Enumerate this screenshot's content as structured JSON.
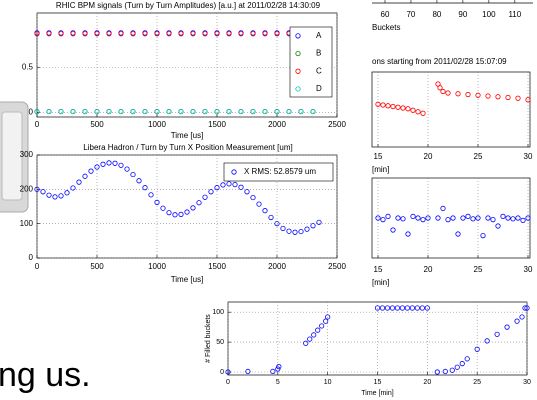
{
  "slide_text": "ng us.",
  "chart_data": [
    {
      "type": "scatter",
      "title": "RHIC BPM signals (Turn by Turn Amplitudes) [a.u.] at 2011/02/28 14:30:09",
      "xlabel": "Time [us]",
      "xlim": [
        0,
        2500
      ],
      "xticks": [
        0,
        500,
        1000,
        1500,
        2000,
        2500
      ],
      "ylim": [
        -0.05,
        1.1
      ],
      "yticks": [
        0,
        0.5
      ],
      "grid": true,
      "legend": "upper right",
      "x": [
        0,
        100,
        200,
        300,
        400,
        500,
        600,
        700,
        800,
        900,
        1000,
        1100,
        1200,
        1300,
        1400,
        1500,
        1600,
        1700,
        1800,
        1900,
        2000,
        2100,
        2200,
        2300
      ],
      "series": [
        {
          "name": "A",
          "color": "#0000ff",
          "values": [
            0.88,
            0.88,
            0.88,
            0.88,
            0.88,
            0.88,
            0.88,
            0.88,
            0.88,
            0.88,
            0.88,
            0.88,
            0.88,
            0.88,
            0.88,
            0.88,
            0.88,
            0.88,
            0.88,
            0.88,
            0.88,
            0.88,
            0.88,
            0.88
          ]
        },
        {
          "name": "B",
          "color": "#008000",
          "values": [
            0.01,
            0.01,
            0.01,
            0.01,
            0.01,
            0.01,
            0.01,
            0.01,
            0.01,
            0.01,
            0.01,
            0.01,
            0.01,
            0.01,
            0.01,
            0.01,
            0.01,
            0.01,
            0.01,
            0.01,
            0.01,
            0.01,
            0.01,
            0.01
          ]
        },
        {
          "name": "C",
          "color": "#ff0000",
          "values": [
            0.87,
            0.87,
            0.87,
            0.87,
            0.87,
            0.87,
            0.87,
            0.87,
            0.87,
            0.87,
            0.87,
            0.87,
            0.87,
            0.87,
            0.87,
            0.87,
            0.87,
            0.87,
            0.87,
            0.87,
            0.87,
            0.87,
            0.87,
            0.87
          ]
        },
        {
          "name": "D",
          "color": "#00bfbf",
          "values": [
            0.01,
            0.01,
            0.01,
            0.01,
            0.01,
            0.01,
            0.01,
            0.01,
            0.01,
            0.01,
            0.01,
            0.01,
            0.01,
            0.01,
            0.01,
            0.01,
            0.01,
            0.01,
            0.01,
            0.01,
            0.01,
            0.01,
            0.01,
            0.01
          ]
        }
      ]
    },
    {
      "type": "scatter",
      "title": "Libera Hadron / Turn by Turn X Position Measurement [um]",
      "xlabel": "Time [us]",
      "xlim": [
        0,
        2500
      ],
      "xticks": [
        0,
        500,
        1000,
        1500,
        2000,
        2500
      ],
      "ylim": [
        0,
        300
      ],
      "yticks": [
        0,
        100,
        200,
        300
      ],
      "grid": true,
      "legend": "upper right",
      "x": [
        0,
        50,
        100,
        150,
        200,
        250,
        300,
        350,
        400,
        450,
        500,
        550,
        600,
        650,
        700,
        750,
        800,
        850,
        900,
        950,
        1000,
        1050,
        1100,
        1150,
        1200,
        1250,
        1300,
        1350,
        1400,
        1450,
        1500,
        1550,
        1600,
        1650,
        1700,
        1750,
        1800,
        1850,
        1900,
        1950,
        2000,
        2050,
        2100,
        2150,
        2200,
        2250,
        2300,
        2350
      ],
      "series": [
        {
          "name": "X RMS: 52.8579 um",
          "color": "#0000ff",
          "values": [
            200,
            193,
            183,
            178,
            181,
            190,
            204,
            221,
            238,
            253,
            265,
            273,
            277,
            276,
            270,
            259,
            243,
            225,
            205,
            184,
            162,
            145,
            132,
            126,
            127,
            134,
            146,
            161,
            177,
            193,
            205,
            213,
            216,
            214,
            206,
            193,
            176,
            157,
            138,
            118,
            100,
            86,
            78,
            75,
            77,
            84,
            94,
            104
          ]
        }
      ]
    },
    {
      "type": "scatter",
      "xlabel": "Buckets",
      "xlim": [
        55,
        117
      ],
      "xticks": [
        60,
        70,
        80,
        90,
        100,
        110
      ]
    },
    {
      "type": "scatter",
      "title": "ons starting from 2011/02/28 15:07:09",
      "xlabel": "[min]",
      "xlim": [
        14.4,
        30.2
      ],
      "xticks": [
        15,
        20,
        25,
        30
      ],
      "ylim": [
        0,
        1
      ],
      "grid": true,
      "x": [
        15,
        15.5,
        16,
        16.5,
        17,
        17.5,
        18,
        18.5,
        19,
        19.5,
        21,
        21.2,
        21.5,
        22,
        23,
        24,
        25,
        26,
        27,
        28,
        29,
        30
      ],
      "series": [
        {
          "color": "#ff0000",
          "values": [
            0.57,
            0.56,
            0.55,
            0.54,
            0.53,
            0.52,
            0.51,
            0.49,
            0.47,
            0.45,
            0.84,
            0.79,
            0.74,
            0.72,
            0.71,
            0.7,
            0.69,
            0.68,
            0.67,
            0.66,
            0.65,
            0.63
          ]
        }
      ]
    },
    {
      "type": "scatter",
      "xlabel": "[min]",
      "xlim": [
        14.4,
        30.2
      ],
      "xticks": [
        15,
        20,
        25,
        30
      ],
      "ylim": [
        0,
        1
      ],
      "grid": true,
      "x": [
        15,
        15.5,
        16,
        16.5,
        17,
        17.5,
        18,
        18.5,
        19,
        19.5,
        20,
        21,
        21.5,
        22,
        22.5,
        23,
        23.5,
        24,
        24.5,
        25,
        25.5,
        26,
        26.5,
        27,
        27.5,
        28,
        28.5,
        29,
        29.5,
        30
      ],
      "series": [
        {
          "color": "#0000ff",
          "values": [
            0.5,
            0.48,
            0.52,
            0.35,
            0.5,
            0.49,
            0.3,
            0.52,
            0.5,
            0.48,
            0.5,
            0.5,
            0.62,
            0.48,
            0.5,
            0.3,
            0.5,
            0.52,
            0.49,
            0.5,
            0.28,
            0.5,
            0.48,
            0.4,
            0.52,
            0.5,
            0.49,
            0.5,
            0.47,
            0.5
          ]
        }
      ]
    },
    {
      "type": "scatter",
      "xlabel": "Time [min]",
      "ylabel": "# Filled buckets",
      "xlim": [
        0,
        30
      ],
      "xticks": [
        0,
        5,
        10,
        15,
        20,
        25,
        30
      ],
      "ylim": [
        -5,
        117
      ],
      "yticks": [
        0,
        50,
        100
      ],
      "grid": true,
      "x": [
        0,
        2,
        4.5,
        5,
        5.1,
        7.8,
        8.2,
        8.6,
        9,
        9.4,
        9.8,
        10,
        15,
        15.5,
        16,
        16.5,
        17,
        17.5,
        18,
        18.5,
        19,
        19.5,
        20,
        21,
        21.8,
        22.5,
        23,
        23.5,
        24,
        25,
        26,
        27,
        28,
        29,
        29.5,
        29.8,
        30
      ],
      "series": [
        {
          "color": "#0000ff",
          "values": [
            0,
            1,
            1,
            5,
            9,
            48,
            55,
            62,
            70,
            77,
            85,
            92,
            107,
            107,
            107,
            107,
            107,
            107,
            107,
            107,
            107,
            107,
            107,
            0,
            1,
            3,
            8,
            14,
            22,
            38,
            52,
            63,
            75,
            85,
            92,
            107,
            107
          ]
        }
      ]
    }
  ]
}
